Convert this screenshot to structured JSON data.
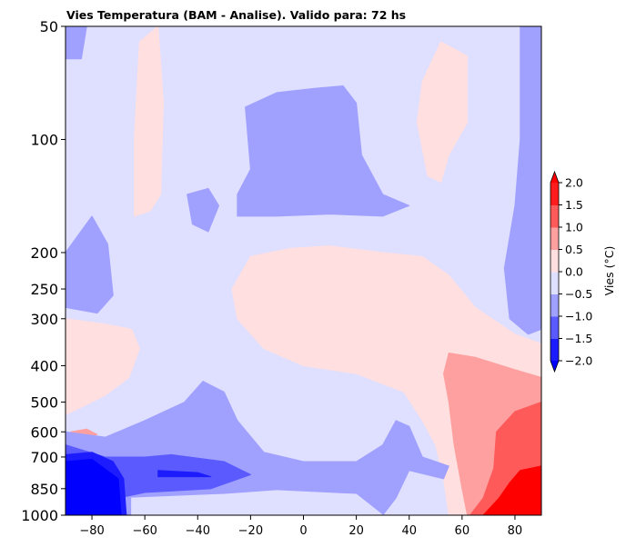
{
  "chart_data": {
    "type": "heatmap",
    "title": "Vies Temperatura (BAM - Analise). Valido para: 72 hs",
    "xlabel": "",
    "ylabel": "",
    "xlim": [
      -90,
      90
    ],
    "ylim": [
      1000,
      50
    ],
    "yscale": "log",
    "xticks": [
      -80,
      -60,
      -40,
      -20,
      0,
      20,
      40,
      60,
      80
    ],
    "yticks": [
      50,
      100,
      200,
      250,
      300,
      400,
      500,
      600,
      700,
      850,
      1000
    ],
    "colorbar": {
      "label": "Vies (°C)",
      "levels": [
        -2.0,
        -1.5,
        -1.0,
        -0.5,
        0.0,
        0.5,
        1.0,
        1.5,
        2.0
      ],
      "ticklabels": [
        "−2.0",
        "−1.5",
        "−1.0",
        "−0.5",
        "0.0",
        "0.5",
        "1.0",
        "1.5",
        "2.0"
      ],
      "extend": "both",
      "colormap": "bwr",
      "colors": [
        "#0000ff",
        "#1c1cff",
        "#5a5aff",
        "#a0a0ff",
        "#dfdfff",
        "#ffdfdf",
        "#ffa0a0",
        "#ff5a5a",
        "#ff1c1c",
        "#ff0000"
      ]
    },
    "background_bin": 4,
    "regions": [
      {
        "bin": 5,
        "points": [
          [
            -62,
            55
          ],
          [
            -55,
            50
          ],
          [
            -53,
            80
          ],
          [
            -54,
            140
          ],
          [
            -58,
            155
          ],
          [
            -64,
            160
          ],
          [
            -64,
            100
          ]
        ]
      },
      {
        "bin": 5,
        "points": [
          [
            45,
            70
          ],
          [
            52,
            55
          ],
          [
            62,
            60
          ],
          [
            62,
            90
          ],
          [
            55,
            110
          ],
          [
            52,
            130
          ],
          [
            47,
            125
          ],
          [
            43,
            90
          ]
        ]
      },
      {
        "bin": 5,
        "points": [
          [
            -27,
            250
          ],
          [
            -20,
            205
          ],
          [
            -5,
            195
          ],
          [
            10,
            192
          ],
          [
            30,
            200
          ],
          [
            45,
            205
          ],
          [
            55,
            230
          ],
          [
            65,
            280
          ],
          [
            80,
            330
          ],
          [
            90,
            350
          ],
          [
            90,
            1000
          ],
          [
            55,
            1000
          ],
          [
            53,
            800
          ],
          [
            50,
            650
          ],
          [
            45,
            560
          ],
          [
            38,
            470
          ],
          [
            20,
            420
          ],
          [
            0,
            400
          ],
          [
            -15,
            360
          ],
          [
            -25,
            300
          ]
        ]
      },
      {
        "bin": 5,
        "points": [
          [
            -90,
            300
          ],
          [
            -75,
            310
          ],
          [
            -65,
            320
          ],
          [
            -62,
            360
          ],
          [
            -66,
            430
          ],
          [
            -75,
            480
          ],
          [
            -85,
            520
          ],
          [
            -90,
            540
          ]
        ]
      },
      {
        "bin": 5,
        "points": [
          [
            -20,
            960
          ],
          [
            -5,
            950
          ],
          [
            0,
            1000
          ],
          [
            -20,
            1000
          ]
        ]
      },
      {
        "bin": 6,
        "points": [
          [
            55,
            370
          ],
          [
            65,
            380
          ],
          [
            80,
            410
          ],
          [
            90,
            430
          ],
          [
            90,
            1000
          ],
          [
            62,
            1000
          ],
          [
            60,
            850
          ],
          [
            57,
            650
          ],
          [
            55,
            500
          ],
          [
            53,
            420
          ]
        ]
      },
      {
        "bin": 6,
        "points": [
          [
            -88,
            600
          ],
          [
            -82,
            590
          ],
          [
            -78,
            610
          ],
          [
            -86,
            630
          ]
        ]
      },
      {
        "bin": 7,
        "points": [
          [
            73,
            600
          ],
          [
            80,
            530
          ],
          [
            90,
            500
          ],
          [
            90,
            1000
          ],
          [
            63,
            1000
          ],
          [
            68,
            900
          ],
          [
            72,
            750
          ]
        ]
      },
      {
        "bin": 9,
        "points": [
          [
            78,
            820
          ],
          [
            82,
            760
          ],
          [
            90,
            740
          ],
          [
            90,
            1000
          ],
          [
            68,
            1000
          ],
          [
            74,
            900
          ]
        ]
      },
      {
        "bin": 3,
        "points": [
          [
            -22,
            82
          ],
          [
            -10,
            75
          ],
          [
            5,
            73
          ],
          [
            15,
            72
          ],
          [
            20,
            80
          ],
          [
            22,
            110
          ],
          [
            30,
            140
          ],
          [
            40,
            150
          ],
          [
            30,
            160
          ],
          [
            10,
            158
          ],
          [
            -10,
            160
          ],
          [
            -25,
            160
          ],
          [
            -25,
            140
          ],
          [
            -20,
            120
          ]
        ]
      },
      {
        "bin": 3,
        "points": [
          [
            -44,
            140
          ],
          [
            -36,
            135
          ],
          [
            -32,
            150
          ],
          [
            -36,
            176
          ],
          [
            -42,
            168
          ]
        ]
      },
      {
        "bin": 3,
        "points": [
          [
            -90,
            200
          ],
          [
            -80,
            160
          ],
          [
            -74,
            190
          ],
          [
            -72,
            260
          ],
          [
            -78,
            290
          ],
          [
            -90,
            280
          ]
        ]
      },
      {
        "bin": 3,
        "points": [
          [
            -90,
            50
          ],
          [
            -82,
            50
          ],
          [
            -84,
            61
          ],
          [
            -90,
            61
          ]
        ]
      },
      {
        "bin": 3,
        "points": [
          [
            82,
            50
          ],
          [
            90,
            50
          ],
          [
            90,
            320
          ],
          [
            85,
            330
          ],
          [
            78,
            300
          ],
          [
            76,
            220
          ],
          [
            80,
            150
          ],
          [
            82,
            100
          ]
        ]
      },
      {
        "bin": 3,
        "points": [
          [
            -90,
            600
          ],
          [
            -75,
            620
          ],
          [
            -60,
            560
          ],
          [
            -45,
            500
          ],
          [
            -38,
            440
          ],
          [
            -30,
            470
          ],
          [
            -25,
            560
          ],
          [
            -15,
            680
          ],
          [
            0,
            720
          ],
          [
            20,
            720
          ],
          [
            30,
            650
          ],
          [
            35,
            560
          ],
          [
            40,
            580
          ],
          [
            45,
            700
          ],
          [
            55,
            740
          ],
          [
            53,
            800
          ],
          [
            40,
            760
          ],
          [
            35,
            900
          ],
          [
            30,
            1000
          ],
          [
            -90,
            1000
          ]
        ]
      },
      {
        "bin": 4,
        "points": [
          [
            -65,
            900
          ],
          [
            -30,
            880
          ],
          [
            -10,
            860
          ],
          [
            20,
            880
          ],
          [
            30,
            1000
          ],
          [
            -65,
            1000
          ]
        ]
      },
      {
        "bin": 2,
        "points": [
          [
            -90,
            650
          ],
          [
            -75,
            700
          ],
          [
            -60,
            700
          ],
          [
            -50,
            690
          ],
          [
            -30,
            720
          ],
          [
            -20,
            780
          ],
          [
            -35,
            850
          ],
          [
            -60,
            870
          ],
          [
            -70,
            900
          ],
          [
            -90,
            900
          ]
        ]
      },
      {
        "bin": 1,
        "points": [
          [
            -55,
            760
          ],
          [
            -40,
            770
          ],
          [
            -35,
            790
          ],
          [
            -55,
            790
          ]
        ]
      },
      {
        "bin": 1,
        "points": [
          [
            -90,
            690
          ],
          [
            -80,
            680
          ],
          [
            -72,
            720
          ],
          [
            -68,
            800
          ],
          [
            -67,
            1000
          ],
          [
            -90,
            1000
          ]
        ]
      },
      {
        "bin": 0,
        "points": [
          [
            -90,
            720
          ],
          [
            -80,
            710
          ],
          [
            -70,
            800
          ],
          [
            -69,
            1000
          ],
          [
            -90,
            1000
          ]
        ]
      }
    ]
  }
}
